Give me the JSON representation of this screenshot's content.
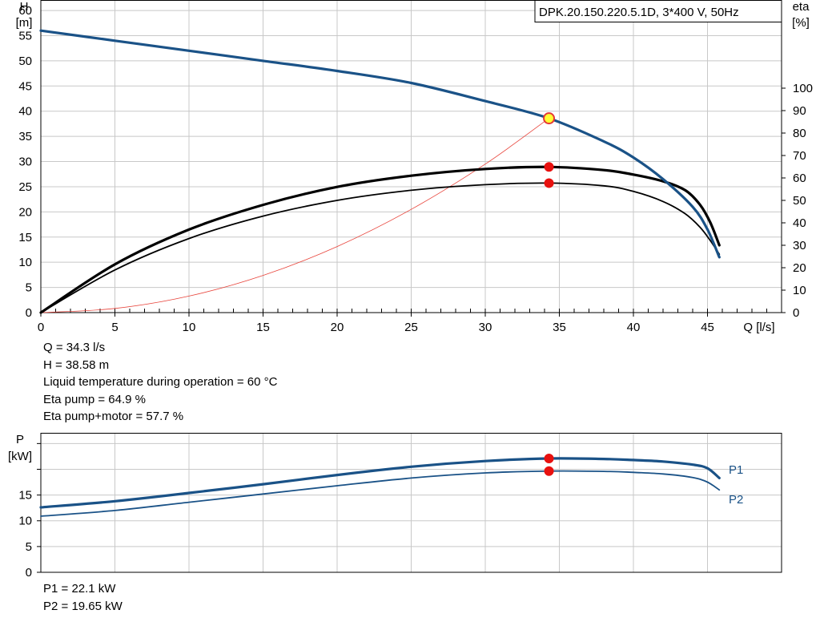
{
  "chart_data": [
    {
      "type": "line",
      "title": "DPK.20.150.220.5.1D, 3*400 V, 50Hz",
      "xlabel": "Q [l/s]",
      "ylabel_left": [
        "H",
        "[m]"
      ],
      "ylabel_right": [
        "eta",
        "[%]"
      ],
      "xlim": [
        0,
        50
      ],
      "ylim_left": [
        0,
        62
      ],
      "ylim_right": [
        0,
        100
      ],
      "x_ticks": [
        "0",
        "5",
        "10",
        "15",
        "20",
        "25",
        "30",
        "35",
        "40",
        "45"
      ],
      "y_left_ticks": [
        "0",
        "5",
        "10",
        "15",
        "20",
        "25",
        "30",
        "35",
        "40",
        "45",
        "50",
        "55",
        "60"
      ],
      "y_right_ticks": [
        "0",
        "10",
        "20",
        "30",
        "40",
        "50",
        "60",
        "70",
        "80",
        "90",
        "100"
      ],
      "grid": true,
      "series": [
        {
          "key": "H",
          "axis": "left",
          "color": "#1a5287",
          "x": [
            0,
            5,
            10,
            15,
            20,
            25,
            30,
            34.3,
            38,
            40,
            42,
            44,
            45,
            45.8
          ],
          "y": [
            56,
            54,
            52,
            50,
            48,
            45.6,
            42,
            38.58,
            34,
            30.8,
            26.5,
            21,
            16.5,
            11
          ]
        },
        {
          "key": "eta_motor",
          "axis": "right",
          "color": "#000000",
          "x": [
            0,
            5,
            10,
            15,
            20,
            25,
            30,
            34.3,
            38,
            40,
            42,
            43.5,
            44.5,
            45.2,
            45.8
          ],
          "y": [
            0,
            19,
            33,
            43,
            50,
            54.5,
            57,
            57.7,
            56.5,
            54,
            49.5,
            44,
            38,
            32,
            26
          ]
        },
        {
          "key": "eta_pump",
          "axis": "right",
          "color": "#000000",
          "x": [
            0,
            5,
            10,
            15,
            20,
            25,
            30,
            34.3,
            38,
            40,
            42,
            43.5,
            44.5,
            45.2,
            45.8
          ],
          "y": [
            0,
            21.5,
            37,
            48,
            56,
            61,
            64,
            64.9,
            63.5,
            61.5,
            58.5,
            54.5,
            48,
            40,
            30
          ]
        },
        {
          "key": "system_curve",
          "axis": "left",
          "color": "#e8433a",
          "x": [
            0,
            5,
            10,
            15,
            20,
            25,
            30,
            34.3
          ],
          "y": [
            0,
            0.82,
            3.28,
            7.38,
            13.12,
            20.5,
            29.5,
            38.58
          ]
        }
      ],
      "operating_points": [
        {
          "x": 34.3,
          "y": 38.58,
          "axis": "left",
          "fill": "#ffff33",
          "stroke": "#e53935"
        },
        {
          "x": 34.3,
          "y": 64.9,
          "axis": "right",
          "fill": "#e8110f",
          "stroke": "#e8110f"
        },
        {
          "x": 34.3,
          "y": 57.7,
          "axis": "right",
          "fill": "#e8110f",
          "stroke": "#e8110f"
        }
      ]
    },
    {
      "type": "line",
      "ylabel": [
        "P",
        "[kW]"
      ],
      "xlim": [
        0,
        50
      ],
      "ylim": [
        0,
        27
      ],
      "y_ticks": [
        "0",
        "5",
        "10",
        "15"
      ],
      "grid": true,
      "series": [
        {
          "name": "P1",
          "color": "#1a5287",
          "x": [
            0,
            5,
            10,
            15,
            20,
            25,
            30,
            34.3,
            38,
            40,
            42,
            44,
            45,
            45.8
          ],
          "y": [
            12.6,
            13.8,
            15.4,
            17.1,
            18.9,
            20.5,
            21.6,
            22.1,
            22.0,
            21.8,
            21.5,
            20.9,
            20.2,
            18.3
          ]
        },
        {
          "name": "P2",
          "color": "#1a5287",
          "x": [
            0,
            5,
            10,
            15,
            20,
            25,
            30,
            34.3,
            38,
            40,
            42,
            44,
            45,
            45.8
          ],
          "y": [
            10.9,
            12.0,
            13.6,
            15.2,
            16.8,
            18.3,
            19.3,
            19.65,
            19.6,
            19.4,
            19.1,
            18.4,
            17.5,
            16.0
          ]
        }
      ],
      "operating_points": [
        {
          "x": 34.3,
          "y": 22.1,
          "fill": "#e8110f"
        },
        {
          "x": 34.3,
          "y": 19.65,
          "fill": "#e8110f"
        }
      ]
    }
  ],
  "info_top": [
    "Q = 34.3 l/s",
    "H = 38.58 m",
    "Liquid temperature during operation = 60 °C",
    "Eta pump = 64.9 %",
    "Eta pump+motor = 57.7 %"
  ],
  "info_bottom": [
    "P1 = 22.1 kW",
    "P2 = 19.65 kW"
  ]
}
